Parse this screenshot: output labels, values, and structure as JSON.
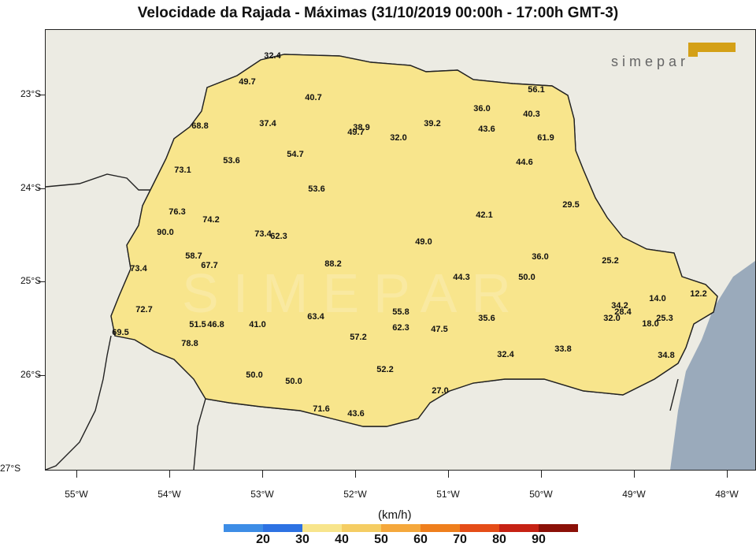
{
  "title": "Velocidade da Rajada - Máximas (31/10/2019 00:00h - 17:00h GMT-3)",
  "brand": {
    "name": "SIMEPAR",
    "logo_text": "simepar",
    "color": "#d4a017"
  },
  "y_axis": {
    "ticks": [
      "23°S",
      "24°S",
      "25°S",
      "26°S",
      "27°S"
    ]
  },
  "x_axis": {
    "ticks": [
      "55°W",
      "54°W",
      "53°W",
      "52°W",
      "51°W",
      "50°W",
      "49°W",
      "48°W"
    ]
  },
  "legend": {
    "unit": "(km/h)",
    "labels": [
      "20",
      "30",
      "40",
      "50",
      "60",
      "70",
      "80",
      "90"
    ],
    "colors": [
      "#3d8de6",
      "#2d72e3",
      "#f8e58c",
      "#f5cd63",
      "#f5a83c",
      "#ef7f1d",
      "#e54d18",
      "#c62214",
      "#8b1008"
    ]
  },
  "map": {
    "land_color": "#ecebe3",
    "ocean_color": "#9aaabb",
    "state_outline": "#222222",
    "stations": [
      {
        "value": "49.7"
      },
      {
        "value": "32.4"
      },
      {
        "value": "40.7"
      },
      {
        "value": "36.0"
      },
      {
        "value": "56.1"
      },
      {
        "value": "40.3"
      },
      {
        "value": "37.4"
      },
      {
        "value": "38.9"
      },
      {
        "value": "49.7"
      },
      {
        "value": "39.2"
      },
      {
        "value": "43.6"
      },
      {
        "value": "32.0"
      },
      {
        "value": "61.9"
      },
      {
        "value": "68.8"
      },
      {
        "value": "53.6"
      },
      {
        "value": "54.7"
      },
      {
        "value": "44.6"
      },
      {
        "value": "73.1"
      },
      {
        "value": "53.6"
      },
      {
        "value": "29.5"
      },
      {
        "value": "76.3"
      },
      {
        "value": "74.2"
      },
      {
        "value": "42.1"
      },
      {
        "value": "90.0"
      },
      {
        "value": "73.4"
      },
      {
        "value": "62.3"
      },
      {
        "value": "49.0"
      },
      {
        "value": "58.7"
      },
      {
        "value": "67.7"
      },
      {
        "value": "36.0"
      },
      {
        "value": "25.2"
      },
      {
        "value": "73.4"
      },
      {
        "value": "88.2"
      },
      {
        "value": "44.3"
      },
      {
        "value": "50.0"
      },
      {
        "value": "72.7"
      },
      {
        "value": "14.0"
      },
      {
        "value": "12.2"
      },
      {
        "value": "34.2"
      },
      {
        "value": "28.4"
      },
      {
        "value": "32.0"
      },
      {
        "value": "18.0"
      },
      {
        "value": "25.3"
      },
      {
        "value": "55.8"
      },
      {
        "value": "35.6"
      },
      {
        "value": "51.5"
      },
      {
        "value": "46.8"
      },
      {
        "value": "41.0"
      },
      {
        "value": "63.4"
      },
      {
        "value": "62.3"
      },
      {
        "value": "47.5"
      },
      {
        "value": "69.5"
      },
      {
        "value": "78.8"
      },
      {
        "value": "57.2"
      },
      {
        "value": "33.8"
      },
      {
        "value": "32.4"
      },
      {
        "value": "34.8"
      },
      {
        "value": "50.0"
      },
      {
        "value": "50.0"
      },
      {
        "value": "52.2"
      },
      {
        "value": "27.0"
      },
      {
        "value": "71.6"
      },
      {
        "value": "43.6"
      }
    ]
  }
}
